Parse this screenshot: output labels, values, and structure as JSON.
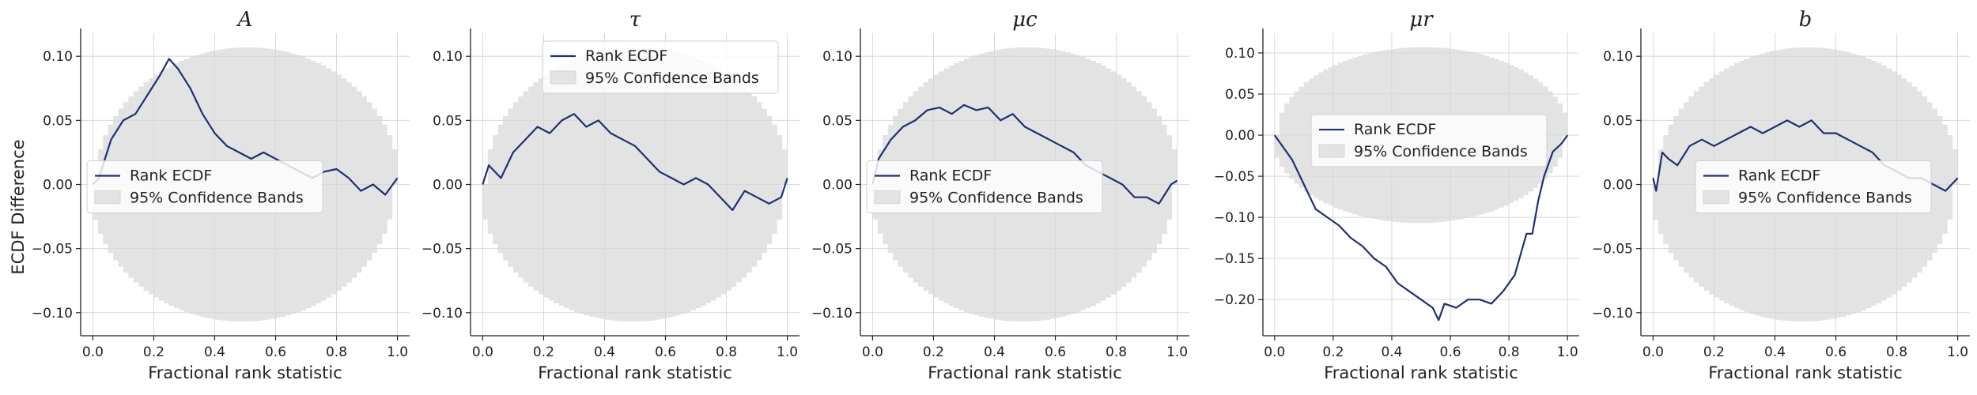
{
  "figure": {
    "ylabel_shared": "ECDF Difference"
  },
  "chart_data": [
    {
      "type": "line",
      "title": "A",
      "xlabel": "Fractional rank statistic",
      "ylabel": "ECDF Difference",
      "xlim": [
        -0.04,
        1.04
      ],
      "ylim": [
        -0.118,
        0.118
      ],
      "xticks": [
        0.0,
        0.2,
        0.4,
        0.6,
        0.8,
        1.0
      ],
      "xtick_labels": [
        "0.0",
        "0.2",
        "0.4",
        "0.6",
        "0.8",
        "1.0"
      ],
      "yticks": [
        -0.1,
        -0.05,
        0.0,
        0.05,
        0.1
      ],
      "ytick_labels": [
        "−0.10",
        "−0.05",
        "0.00",
        "0.05",
        "0.10"
      ],
      "band_halfwidth_max": 0.107,
      "legend": {
        "line": "Rank ECDF",
        "band": "95% Confidence Bands",
        "placement": "center-left"
      },
      "grid": true,
      "series": [
        {
          "name": "Rank ECDF",
          "x": [
            0.0,
            0.02,
            0.04,
            0.06,
            0.1,
            0.14,
            0.18,
            0.22,
            0.25,
            0.28,
            0.32,
            0.36,
            0.4,
            0.44,
            0.48,
            0.52,
            0.56,
            0.6,
            0.64,
            0.68,
            0.72,
            0.76,
            0.8,
            0.84,
            0.88,
            0.92,
            0.96,
            1.0
          ],
          "y": [
            0.0,
            0.005,
            0.02,
            0.035,
            0.05,
            0.055,
            0.07,
            0.085,
            0.098,
            0.09,
            0.075,
            0.055,
            0.04,
            0.03,
            0.025,
            0.02,
            0.025,
            0.02,
            0.015,
            0.01,
            0.005,
            0.01,
            0.012,
            0.005,
            -0.005,
            0.0,
            -0.008,
            0.005
          ]
        }
      ]
    },
    {
      "type": "line",
      "title": "τ",
      "xlabel": "Fractional rank statistic",
      "ylabel": "",
      "xlim": [
        -0.04,
        1.04
      ],
      "ylim": [
        -0.118,
        0.118
      ],
      "xticks": [
        0.0,
        0.2,
        0.4,
        0.6,
        0.8,
        1.0
      ],
      "xtick_labels": [
        "0.0",
        "0.2",
        "0.4",
        "0.6",
        "0.8",
        "1.0"
      ],
      "yticks": [
        -0.1,
        -0.05,
        0.0,
        0.05,
        0.1
      ],
      "ytick_labels": [
        "−0.10",
        "−0.05",
        "0.00",
        "0.05",
        "0.10"
      ],
      "band_halfwidth_max": 0.107,
      "legend": {
        "line": "Rank ECDF",
        "band": "95% Confidence Bands",
        "placement": "upper-center"
      },
      "grid": true,
      "series": [
        {
          "name": "Rank ECDF",
          "x": [
            0.0,
            0.02,
            0.06,
            0.1,
            0.14,
            0.18,
            0.22,
            0.26,
            0.3,
            0.34,
            0.38,
            0.42,
            0.46,
            0.5,
            0.54,
            0.58,
            0.62,
            0.66,
            0.7,
            0.74,
            0.78,
            0.82,
            0.86,
            0.9,
            0.94,
            0.98,
            1.0
          ],
          "y": [
            0.0,
            0.015,
            0.005,
            0.025,
            0.035,
            0.045,
            0.04,
            0.05,
            0.055,
            0.045,
            0.05,
            0.04,
            0.035,
            0.03,
            0.02,
            0.01,
            0.005,
            0.0,
            0.005,
            0.0,
            -0.01,
            -0.02,
            -0.005,
            -0.01,
            -0.015,
            -0.01,
            0.005
          ]
        }
      ]
    },
    {
      "type": "line",
      "title": "μc",
      "xlabel": "Fractional rank statistic",
      "ylabel": "",
      "xlim": [
        -0.04,
        1.04
      ],
      "ylim": [
        -0.118,
        0.118
      ],
      "xticks": [
        0.0,
        0.2,
        0.4,
        0.6,
        0.8,
        1.0
      ],
      "xtick_labels": [
        "0.0",
        "0.2",
        "0.4",
        "0.6",
        "0.8",
        "1.0"
      ],
      "yticks": [
        -0.1,
        -0.05,
        0.0,
        0.05,
        0.1
      ],
      "ytick_labels": [
        "−0.10",
        "−0.05",
        "0.00",
        "0.05",
        "0.10"
      ],
      "band_halfwidth_max": 0.107,
      "legend": {
        "line": "Rank ECDF",
        "band": "95% Confidence Bands",
        "placement": "center-left"
      },
      "grid": true,
      "series": [
        {
          "name": "Rank ECDF",
          "x": [
            0.0,
            0.02,
            0.06,
            0.1,
            0.14,
            0.18,
            0.22,
            0.26,
            0.3,
            0.34,
            0.38,
            0.42,
            0.46,
            0.5,
            0.54,
            0.58,
            0.62,
            0.66,
            0.7,
            0.74,
            0.78,
            0.82,
            0.86,
            0.9,
            0.94,
            0.98,
            1.0
          ],
          "y": [
            0.0,
            0.02,
            0.035,
            0.045,
            0.05,
            0.058,
            0.06,
            0.055,
            0.062,
            0.058,
            0.06,
            0.05,
            0.055,
            0.045,
            0.04,
            0.035,
            0.03,
            0.025,
            0.015,
            0.01,
            0.005,
            0.0,
            -0.01,
            -0.01,
            -0.015,
            0.0,
            0.003
          ]
        }
      ]
    },
    {
      "type": "line",
      "title": "μr",
      "xlabel": "Fractional rank statistic",
      "ylabel": "",
      "xlim": [
        -0.04,
        1.04
      ],
      "ylim": [
        -0.244,
        0.124
      ],
      "xticks": [
        0.0,
        0.2,
        0.4,
        0.6,
        0.8,
        1.0
      ],
      "xtick_labels": [
        "0.0",
        "0.2",
        "0.4",
        "0.6",
        "0.8",
        "1.0"
      ],
      "yticks": [
        -0.2,
        -0.15,
        -0.1,
        -0.05,
        0.0,
        0.05,
        0.1
      ],
      "ytick_labels": [
        "−0.20",
        "−0.15",
        "−0.10",
        "−0.05",
        "0.00",
        "0.05",
        "0.10"
      ],
      "band_halfwidth_max": 0.107,
      "legend": {
        "line": "Rank ECDF",
        "band": "95% Confidence Bands",
        "placement": "center"
      },
      "grid": true,
      "series": [
        {
          "name": "Rank ECDF",
          "x": [
            0.0,
            0.02,
            0.06,
            0.1,
            0.14,
            0.18,
            0.22,
            0.26,
            0.3,
            0.34,
            0.38,
            0.42,
            0.46,
            0.5,
            0.54,
            0.56,
            0.58,
            0.62,
            0.66,
            0.7,
            0.74,
            0.78,
            0.82,
            0.86,
            0.88,
            0.9,
            0.92,
            0.95,
            0.98,
            1.0
          ],
          "y": [
            0.0,
            -0.01,
            -0.03,
            -0.06,
            -0.09,
            -0.1,
            -0.11,
            -0.125,
            -0.135,
            -0.15,
            -0.16,
            -0.18,
            -0.19,
            -0.2,
            -0.21,
            -0.225,
            -0.205,
            -0.21,
            -0.2,
            -0.2,
            -0.205,
            -0.19,
            -0.17,
            -0.12,
            -0.12,
            -0.08,
            -0.05,
            -0.02,
            -0.01,
            0.0
          ]
        }
      ]
    },
    {
      "type": "line",
      "title": "b",
      "xlabel": "Fractional rank statistic",
      "ylabel": "",
      "xlim": [
        -0.04,
        1.04
      ],
      "ylim": [
        -0.118,
        0.118
      ],
      "xticks": [
        0.0,
        0.2,
        0.4,
        0.6,
        0.8,
        1.0
      ],
      "xtick_labels": [
        "0.0",
        "0.2",
        "0.4",
        "0.6",
        "0.8",
        "1.0"
      ],
      "yticks": [
        -0.1,
        -0.05,
        0.0,
        0.05,
        0.1
      ],
      "ytick_labels": [
        "−0.10",
        "−0.05",
        "0.00",
        "0.05",
        "0.10"
      ],
      "band_halfwidth_max": 0.107,
      "legend": {
        "line": "Rank ECDF",
        "band": "95% Confidence Bands",
        "placement": "center"
      },
      "grid": true,
      "series": [
        {
          "name": "Rank ECDF",
          "x": [
            0.0,
            0.01,
            0.03,
            0.05,
            0.08,
            0.12,
            0.16,
            0.2,
            0.24,
            0.28,
            0.32,
            0.36,
            0.4,
            0.44,
            0.48,
            0.52,
            0.56,
            0.6,
            0.64,
            0.68,
            0.72,
            0.76,
            0.8,
            0.84,
            0.88,
            0.92,
            0.96,
            1.0
          ],
          "y": [
            0.005,
            -0.005,
            0.025,
            0.02,
            0.015,
            0.03,
            0.035,
            0.03,
            0.035,
            0.04,
            0.045,
            0.04,
            0.045,
            0.05,
            0.045,
            0.05,
            0.04,
            0.04,
            0.035,
            0.03,
            0.025,
            0.015,
            0.01,
            0.005,
            0.005,
            0.0,
            -0.005,
            0.005
          ]
        }
      ]
    }
  ]
}
